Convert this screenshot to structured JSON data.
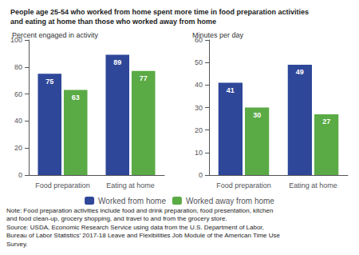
{
  "title": "People age 25-54 who worked from home spent more time in food preparation activities\nand eating at home than those who worked away from home",
  "annotations": [
    "Note: Food preparation activities include food and drink preparation, food presentation, kitchen",
    "and food clean-up, grocery shopping, and travel to and from the grocery store.",
    "Source: USDA, Economic Research Service using data from the U.S. Department of Labor,",
    "Bureau of Labor Statistics’ 2017-18 Leave and Flexibilities Job Module of the American Time Use",
    "Survey."
  ],
  "chart_data": [
    {
      "type": "bar",
      "ylabel": "Percent engaged in activity",
      "categories": [
        "Food preparation",
        "Eating at home"
      ],
      "series": [
        {
          "name": "Worked from home",
          "color": "#2e4799",
          "values": [
            75,
            89
          ]
        },
        {
          "name": "Worked away from home",
          "color": "#5aaa45",
          "values": [
            63,
            77
          ]
        }
      ],
      "ylim": [
        0,
        100
      ],
      "yticks": [
        0,
        20,
        40,
        60,
        80,
        100
      ],
      "grid": false,
      "data_labels": true
    },
    {
      "type": "bar",
      "ylabel": "Minutes per day",
      "categories": [
        "Food preparation",
        "Eating at home"
      ],
      "series": [
        {
          "name": "Worked from home",
          "color": "#2e4799",
          "values": [
            41,
            49
          ]
        },
        {
          "name": "Worked away from home",
          "color": "#5aaa45",
          "values": [
            30,
            27
          ]
        }
      ],
      "ylim": [
        0,
        60
      ],
      "yticks": [
        0,
        10,
        20,
        30,
        40,
        50,
        60
      ],
      "grid": false,
      "data_labels": true
    }
  ]
}
